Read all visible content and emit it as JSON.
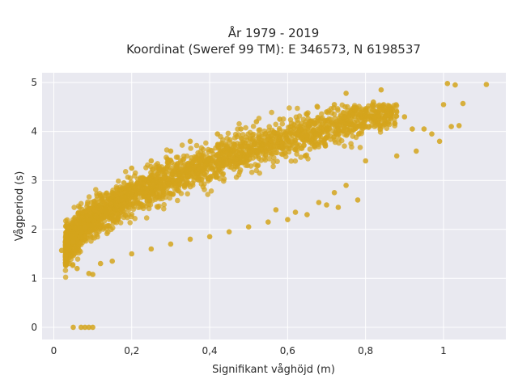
{
  "chart_data": {
    "type": "scatter",
    "title_line1": "År 1979 - 2019",
    "title_line2": "Koordinat (Sweref 99 TM): E 346573, N 6198537",
    "xlabel": "Signifikant våghöjd (m)",
    "ylabel": "Vågperiod (s)",
    "xlim": [
      -0.03,
      1.16
    ],
    "ylim": [
      -0.25,
      5.2
    ],
    "x_ticks": [
      0,
      0.2,
      0.4,
      0.6,
      0.8,
      1
    ],
    "x_tick_labels": [
      "0",
      "0,2",
      "0,4",
      "0,6",
      "0,8",
      "1"
    ],
    "y_ticks": [
      0,
      1,
      2,
      3,
      4,
      5
    ],
    "y_tick_labels": [
      "0",
      "1",
      "2",
      "3",
      "4",
      "5"
    ],
    "grid": true,
    "marker_color": "#D4A41C",
    "background_color": "#E9E9F0",
    "series": [
      {
        "points": [
          [
            0.05,
            0
          ],
          [
            0.07,
            0
          ],
          [
            0.08,
            0
          ],
          [
            0.09,
            0
          ],
          [
            0.1,
            0
          ],
          [
            0.02,
            1.57
          ],
          [
            0.03,
            1.45
          ],
          [
            0.04,
            1.3
          ],
          [
            0.05,
            1.75
          ],
          [
            0.06,
            1.2
          ],
          [
            0.08,
            2.05
          ],
          [
            0.09,
            1.1
          ],
          [
            0.1,
            1.08
          ],
          [
            0.12,
            2.5
          ],
          [
            0.15,
            2.75
          ],
          [
            0.18,
            2.95
          ],
          [
            0.2,
            3.25
          ],
          [
            0.25,
            3.4
          ],
          [
            0.3,
            3.6
          ],
          [
            0.35,
            3.8
          ],
          [
            0.42,
            3.95
          ],
          [
            0.48,
            4.05
          ],
          [
            0.52,
            4.2
          ],
          [
            0.58,
            4.25
          ],
          [
            0.65,
            4.35
          ],
          [
            0.7,
            4.4
          ],
          [
            0.72,
            4.55
          ],
          [
            0.75,
            4.78
          ],
          [
            0.8,
            4.45
          ],
          [
            0.82,
            4.6
          ],
          [
            0.84,
            4.85
          ],
          [
            0.86,
            4.2
          ],
          [
            0.88,
            4.4
          ],
          [
            0.9,
            4.3
          ],
          [
            0.92,
            4.05
          ],
          [
            0.95,
            4.05
          ],
          [
            0.97,
            3.95
          ],
          [
            1.0,
            4.55
          ],
          [
            1.01,
            4.98
          ],
          [
            1.03,
            4.95
          ],
          [
            1.04,
            4.12
          ],
          [
            1.05,
            4.57
          ],
          [
            1.11,
            4.96
          ],
          [
            1.02,
            4.1
          ],
          [
            0.99,
            3.8
          ],
          [
            0.93,
            3.6
          ],
          [
            0.88,
            3.5
          ],
          [
            0.8,
            3.4
          ],
          [
            0.75,
            2.9
          ],
          [
            0.72,
            2.75
          ],
          [
            0.7,
            2.5
          ],
          [
            0.65,
            2.3
          ],
          [
            0.6,
            2.2
          ],
          [
            0.55,
            2.15
          ],
          [
            0.5,
            2.05
          ],
          [
            0.45,
            1.95
          ],
          [
            0.4,
            1.85
          ],
          [
            0.35,
            1.8
          ],
          [
            0.3,
            1.7
          ],
          [
            0.25,
            1.6
          ],
          [
            0.2,
            1.5
          ],
          [
            0.15,
            1.35
          ],
          [
            0.12,
            1.3
          ],
          [
            0.78,
            2.6
          ],
          [
            0.73,
            2.45
          ],
          [
            0.68,
            2.55
          ],
          [
            0.62,
            2.35
          ],
          [
            0.57,
            2.4
          ]
        ]
      }
    ]
  }
}
